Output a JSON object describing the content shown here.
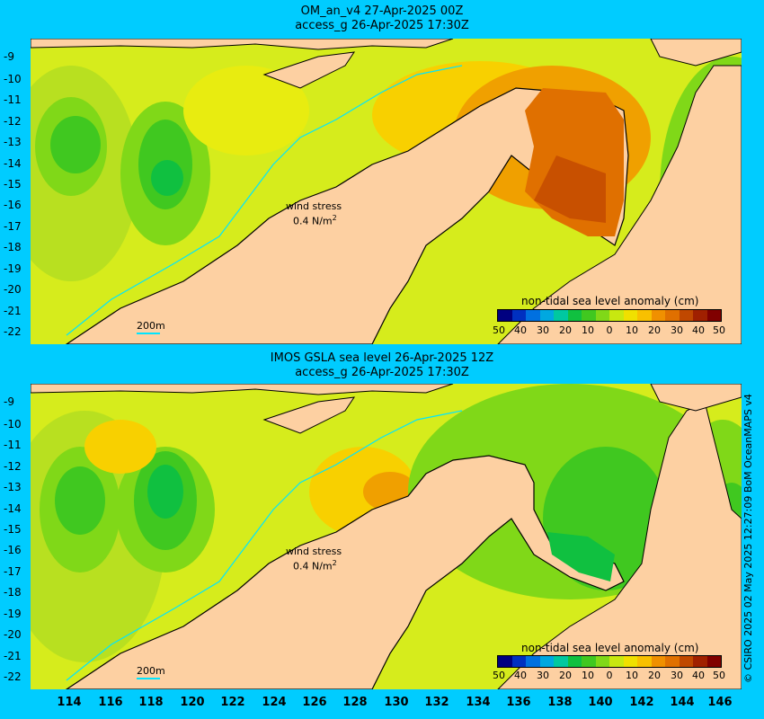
{
  "panel_top": {
    "title_line1": "OM_an_v4  27-Apr-2025 00Z",
    "title_line2": "access_g 26-Apr-2025 17:30Z"
  },
  "panel_bottom": {
    "title_line1": "IMOS GSLA sea level  26-Apr-2025 12Z",
    "title_line2": "access_g 26-Apr-2025 17:30Z"
  },
  "y_ticks": [
    "-9",
    "-10",
    "-11",
    "-12",
    "-13",
    "-14",
    "-15",
    "-16",
    "-17",
    "-18",
    "-19",
    "-20",
    "-21",
    "-22"
  ],
  "x_ticks": [
    "114",
    "116",
    "118",
    "120",
    "122",
    "124",
    "126",
    "128",
    "130",
    "132",
    "134",
    "136",
    "138",
    "140",
    "142",
    "144",
    "146"
  ],
  "colorbar": {
    "title": "non-tidal sea level anomaly (cm)",
    "ticks": [
      "50",
      "40",
      "30",
      "20",
      "10",
      "0",
      "10",
      "20",
      "30",
      "40",
      "50"
    ],
    "colors": [
      "#000080",
      "#0030c0",
      "#0070e0",
      "#00a8e0",
      "#00c8a0",
      "#10c040",
      "#40c820",
      "#80d818",
      "#c8e810",
      "#f0e000",
      "#f8c000",
      "#f09000",
      "#e07000",
      "#c04800",
      "#a02000",
      "#800000"
    ]
  },
  "wind_legend": {
    "label": "wind stress",
    "value": "0.4 N/m",
    "sup": "2"
  },
  "scale_label": "200m",
  "credit": "© CSIRO 2025  02 May 2025 12:27:09 BoM OceanMAPS v4",
  "colors": {
    "background": "#00ccff",
    "land": "#fdd0a2",
    "ocean_base": "#d6ec1c"
  }
}
